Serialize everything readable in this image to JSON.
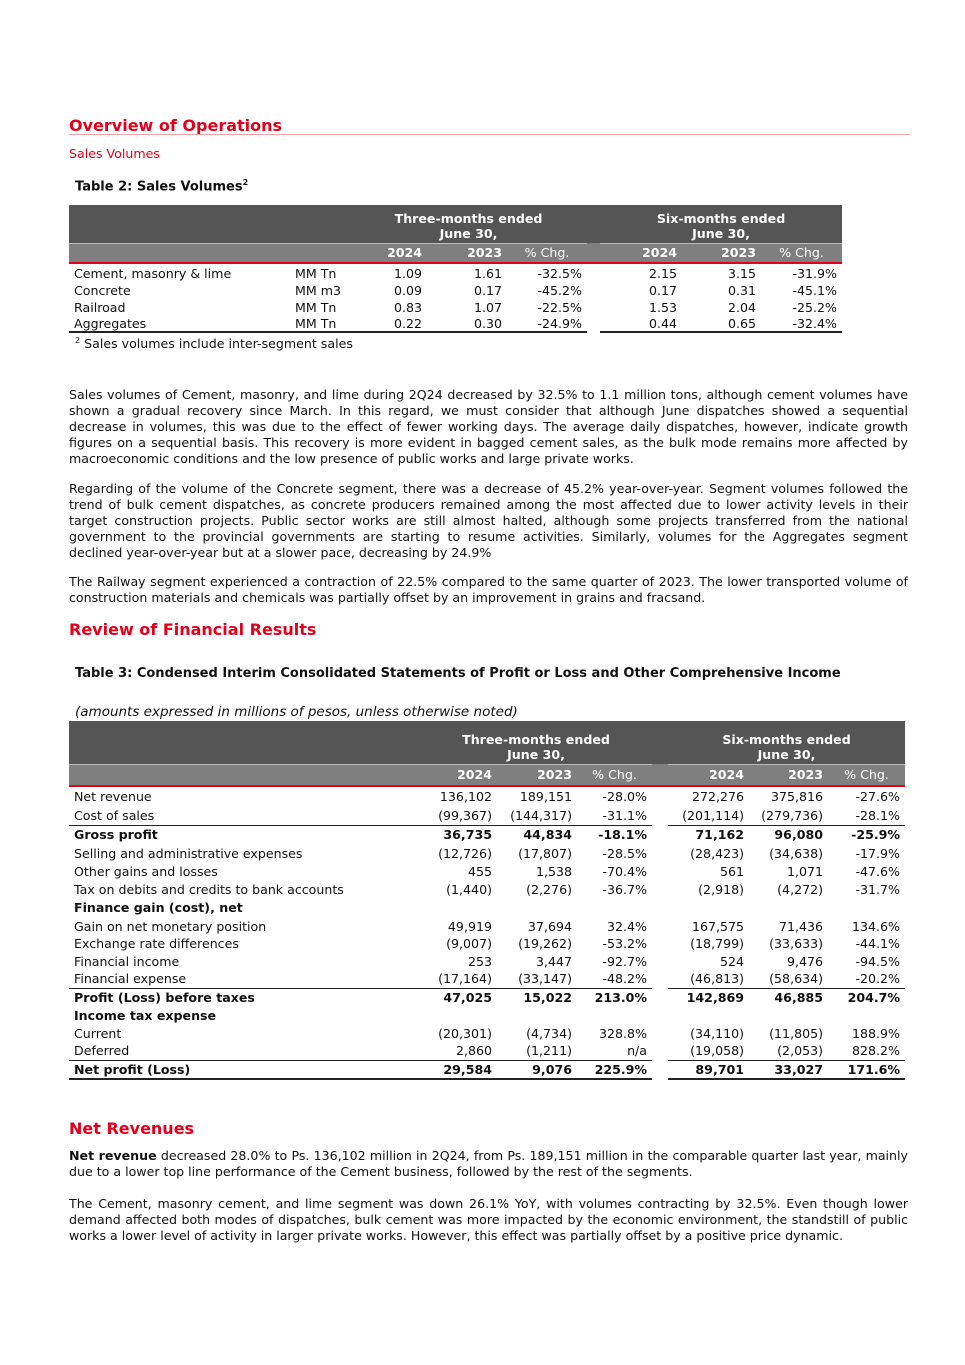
{
  "overview": {
    "title": "Overview of Operations",
    "subtitle": "Sales Volumes"
  },
  "table2": {
    "title": "Table 2: Sales Volumes",
    "title_sup": "2",
    "group1": "Three-months ended June 30,",
    "group2": "Six-months ended June 30,",
    "cols": [
      "2024",
      "2023",
      "% Chg.",
      "2024",
      "2023",
      "% Chg."
    ],
    "rows": [
      {
        "label": "Cement, masonry & lime",
        "unit": "MM Tn",
        "v": [
          "1.09",
          "1.61",
          "-32.5%",
          "2.15",
          "3.15",
          "-31.9%"
        ]
      },
      {
        "label": "Concrete",
        "unit": "MM m3",
        "v": [
          "0.09",
          "0.17",
          "-45.2%",
          "0.17",
          "0.31",
          "-45.1%"
        ]
      },
      {
        "label": "Railroad",
        "unit": "MM Tn",
        "v": [
          "0.83",
          "1.07",
          "-22.5%",
          "1.53",
          "2.04",
          "-25.2%"
        ]
      },
      {
        "label": "Aggregates",
        "unit": "MM Tn",
        "v": [
          "0.22",
          "0.30",
          "-24.9%",
          "0.44",
          "0.65",
          "-32.4%"
        ]
      }
    ],
    "footnote_mark": "2",
    "footnote": "Sales volumes include inter-segment sales"
  },
  "paragraphs1": [
    "Sales volumes of Cement, masonry, and lime during 2Q24 decreased by 32.5% to 1.1 million tons, although cement volumes have shown a gradual recovery since March. In this regard, we must consider that although June dispatches showed a sequential decrease in volumes, this was due to the effect of fewer working days. The average daily dispatches, however, indicate growth figures on a sequential basis. This recovery is more evident in bagged cement sales, as the bulk mode remains more affected by macroeconomic conditions and the low presence of public works and large private works.",
    "Regarding of the volume of the Concrete segment, there was a decrease of 45.2% year-over-year. Segment volumes followed the trend of bulk cement dispatches, as concrete producers remained among the most affected due to lower activity levels in their target construction projects. Public sector works are still almost halted, although some projects transferred from the national government to the provincial governments are starting to resume activities. Similarly, volumes for the Aggregates segment declined year-over-year but at a slower pace, decreasing by 24.9%",
    "The Railway segment experienced a contraction of 22.5% compared to the same quarter of 2023. The lower transported volume of construction materials and chemicals was partially offset by an improvement in grains and fracsand."
  ],
  "review": {
    "title": "Review of Financial Results"
  },
  "table3": {
    "title": "Table 3: Condensed Interim Consolidated Statements of Profit or Loss and Other Comprehensive Income",
    "note": "(amounts expressed in millions of pesos, unless otherwise noted)",
    "group1": "Three-months ended June 30,",
    "group2": "Six-months ended June 30,",
    "cols": [
      "2024",
      "2023",
      "% Chg.",
      "2024",
      "2023",
      "% Chg."
    ],
    "rows": [
      {
        "label": "Net revenue",
        "v": [
          "136,102",
          "189,151",
          "-28.0%",
          "272,276",
          "375,816",
          "-27.6%"
        ]
      },
      {
        "label": "Cost of sales",
        "v": [
          "(99,367)",
          "(144,317)",
          "-31.1%",
          "(201,114)",
          "(279,736)",
          "-28.1%"
        ]
      },
      {
        "label": "Gross profit",
        "v": [
          "36,735",
          "44,834",
          "-18.1%",
          "71,162",
          "96,080",
          "-25.9%"
        ]
      },
      {
        "label": "Selling and administrative expenses",
        "v": [
          "(12,726)",
          "(17,807)",
          "-28.5%",
          "(28,423)",
          "(34,638)",
          "-17.9%"
        ]
      },
      {
        "label": "Other gains and losses",
        "v": [
          "455",
          "1,538",
          "-70.4%",
          "561",
          "1,071",
          "-47.6%"
        ]
      },
      {
        "label": "Tax on debits and credits to bank accounts",
        "v": [
          "(1,440)",
          "(2,276)",
          "-36.7%",
          "(2,918)",
          "(4,272)",
          "-31.7%"
        ]
      },
      {
        "label": "Finance gain (cost), net",
        "v": [
          "",
          "",
          "",
          "",
          "",
          ""
        ]
      },
      {
        "label": "Gain on net monetary position",
        "v": [
          "49,919",
          "37,694",
          "32.4%",
          "167,575",
          "71,436",
          "134.6%"
        ]
      },
      {
        "label": "Exchange rate differences",
        "v": [
          "(9,007)",
          "(19,262)",
          "-53.2%",
          "(18,799)",
          "(33,633)",
          "-44.1%"
        ]
      },
      {
        "label": "Financial income",
        "v": [
          "253",
          "3,447",
          "-92.7%",
          "524",
          "9,476",
          "-94.5%"
        ]
      },
      {
        "label": "Financial expense",
        "v": [
          "(17,164)",
          "(33,147)",
          "-48.2%",
          "(46,813)",
          "(58,634)",
          "-20.2%"
        ]
      },
      {
        "label": "Profit (Loss) before taxes",
        "v": [
          "47,025",
          "15,022",
          "213.0%",
          "142,869",
          "46,885",
          "204.7%"
        ]
      },
      {
        "label": "Income tax expense",
        "v": [
          "",
          "",
          "",
          "",
          "",
          ""
        ]
      },
      {
        "label": "Current",
        "v": [
          "(20,301)",
          "(4,734)",
          "328.8%",
          "(34,110)",
          "(11,805)",
          "188.9%"
        ]
      },
      {
        "label": "Deferred",
        "v": [
          "2,860",
          "(1,211)",
          "n/a",
          "(19,058)",
          "(2,053)",
          "828.2%"
        ]
      },
      {
        "label": "Net profit (Loss)",
        "v": [
          "29,584",
          "9,076",
          "225.9%",
          "89,701",
          "33,027",
          "171.6%"
        ]
      }
    ]
  },
  "net_revenues": {
    "title": "Net Revenues",
    "p1_bold": "Net revenue",
    "p1": " decreased 28.0% to Ps. 136,102 million in 2Q24, from Ps. 189,151 million in the comparable quarter last year, mainly due to a lower top line performance of the Cement business, followed by the rest of the segments.",
    "p2": "The Cement, masonry cement, and lime segment was down 26.1% YoY, with volumes contracting by 32.5%. Even though lower demand affected both modes of dispatches, bulk cement was more impacted by the economic environment, the standstill of public works a lower level of activity in larger private works. However, this effect was partially offset by a positive price dynamic."
  }
}
